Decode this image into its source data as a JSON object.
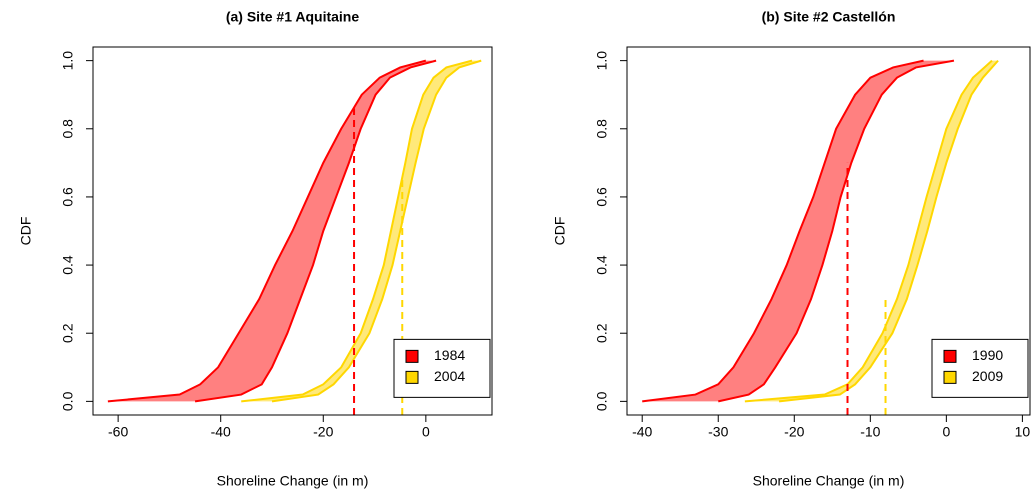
{
  "chart_data": [
    {
      "type": "band",
      "title": "(a) Site #1 Aquitaine",
      "x_label": "Shoreline Change (in m)",
      "y_label": "CDF",
      "xlim": [
        -64.9,
        12.9
      ],
      "ylim": [
        -0.04,
        1.04
      ],
      "xticks": [
        -60,
        -40,
        -20,
        0
      ],
      "yticks": [
        {
          "value": 0,
          "label": "0.0"
        },
        0.2,
        0.4,
        0.6,
        0.8,
        {
          "value": 1,
          "label": "1.0"
        }
      ],
      "legend": "bottom-right",
      "series": [
        {
          "name": "1984",
          "color": "#ff0000",
          "fill": "#ff8080",
          "values": [
            0,
            0.02,
            0.05,
            0.1,
            0.2,
            0.3,
            0.4,
            0.5,
            0.6,
            0.7,
            0.8,
            0.9,
            0.95,
            0.98,
            1
          ],
          "x_low": [
            -62,
            -48,
            -44,
            -40.5,
            -36.5,
            -32.5,
            -29.4,
            -26,
            -23,
            -20,
            -16.5,
            -12.5,
            -9,
            -5,
            0
          ],
          "x_high": [
            -45,
            -36,
            -32,
            -30,
            -27,
            -24.5,
            -22,
            -20,
            -17.5,
            -15,
            -12.7,
            -9.8,
            -7,
            -3,
            2
          ],
          "marker": {
            "x": -14,
            "y": 0.86
          }
        },
        {
          "name": "2004",
          "color": "#ffd700",
          "fill": "#ffe97a",
          "values": [
            0,
            0.02,
            0.05,
            0.1,
            0.2,
            0.3,
            0.4,
            0.5,
            0.6,
            0.7,
            0.8,
            0.9,
            0.95,
            0.98,
            1
          ],
          "x_low": [
            -36,
            -24,
            -20,
            -16.5,
            -12.7,
            -10.3,
            -8.2,
            -6.8,
            -5.4,
            -4,
            -2.7,
            -0.5,
            1.5,
            4,
            9
          ],
          "x_high": [
            -30,
            -21,
            -18,
            -15,
            -11,
            -8.5,
            -6.5,
            -5,
            -3.5,
            -2,
            -0.4,
            2,
            4,
            6.5,
            10.8
          ],
          "marker": {
            "x": -4.6,
            "y": 0.65
          }
        }
      ]
    },
    {
      "type": "band",
      "title": "(b) Site #2 Castellón",
      "x_label": "Shoreline Change (in m)",
      "y_label": "CDF",
      "xlim": [
        -42,
        11
      ],
      "ylim": [
        -0.04,
        1.04
      ],
      "xticks": [
        -40,
        -30,
        -20,
        -10,
        0,
        10
      ],
      "yticks": [
        {
          "value": 0,
          "label": "0.0"
        },
        0.2,
        0.4,
        0.6,
        0.8,
        {
          "value": 1,
          "label": "1.0"
        }
      ],
      "legend": "bottom-right",
      "series": [
        {
          "name": "1990",
          "color": "#ff0000",
          "fill": "#ff8080",
          "values": [
            0,
            0.02,
            0.05,
            0.1,
            0.2,
            0.3,
            0.4,
            0.5,
            0.6,
            0.7,
            0.8,
            0.9,
            0.95,
            0.98,
            1
          ],
          "x_low": [
            -40,
            -33,
            -30,
            -28,
            -25.3,
            -23,
            -21,
            -19.3,
            -17.5,
            -16,
            -14.5,
            -12,
            -10,
            -7,
            -3
          ],
          "x_high": [
            -30,
            -26,
            -24,
            -22.5,
            -19.7,
            -17.8,
            -16.3,
            -15,
            -13.9,
            -12.5,
            -10.8,
            -8.5,
            -6.5,
            -4,
            1
          ],
          "marker": {
            "x": -13,
            "y": 0.7
          }
        },
        {
          "name": "2009",
          "color": "#ffd700",
          "fill": "#ffe97a",
          "values": [
            0,
            0.02,
            0.05,
            0.1,
            0.2,
            0.3,
            0.4,
            0.5,
            0.6,
            0.7,
            0.8,
            0.9,
            0.95,
            0.98,
            1
          ],
          "x_low": [
            -26.5,
            -16,
            -13,
            -11,
            -8.4,
            -6.5,
            -5,
            -3.8,
            -2.6,
            -1.3,
            0,
            2,
            3.5,
            5,
            6
          ],
          "x_high": [
            -22,
            -14,
            -12,
            -10,
            -7.1,
            -5.2,
            -3.8,
            -2.5,
            -1.3,
            0,
            1.5,
            3.3,
            4.8,
            6,
            6.8
          ],
          "marker": {
            "x": -8,
            "y": 0.3
          }
        }
      ]
    }
  ]
}
